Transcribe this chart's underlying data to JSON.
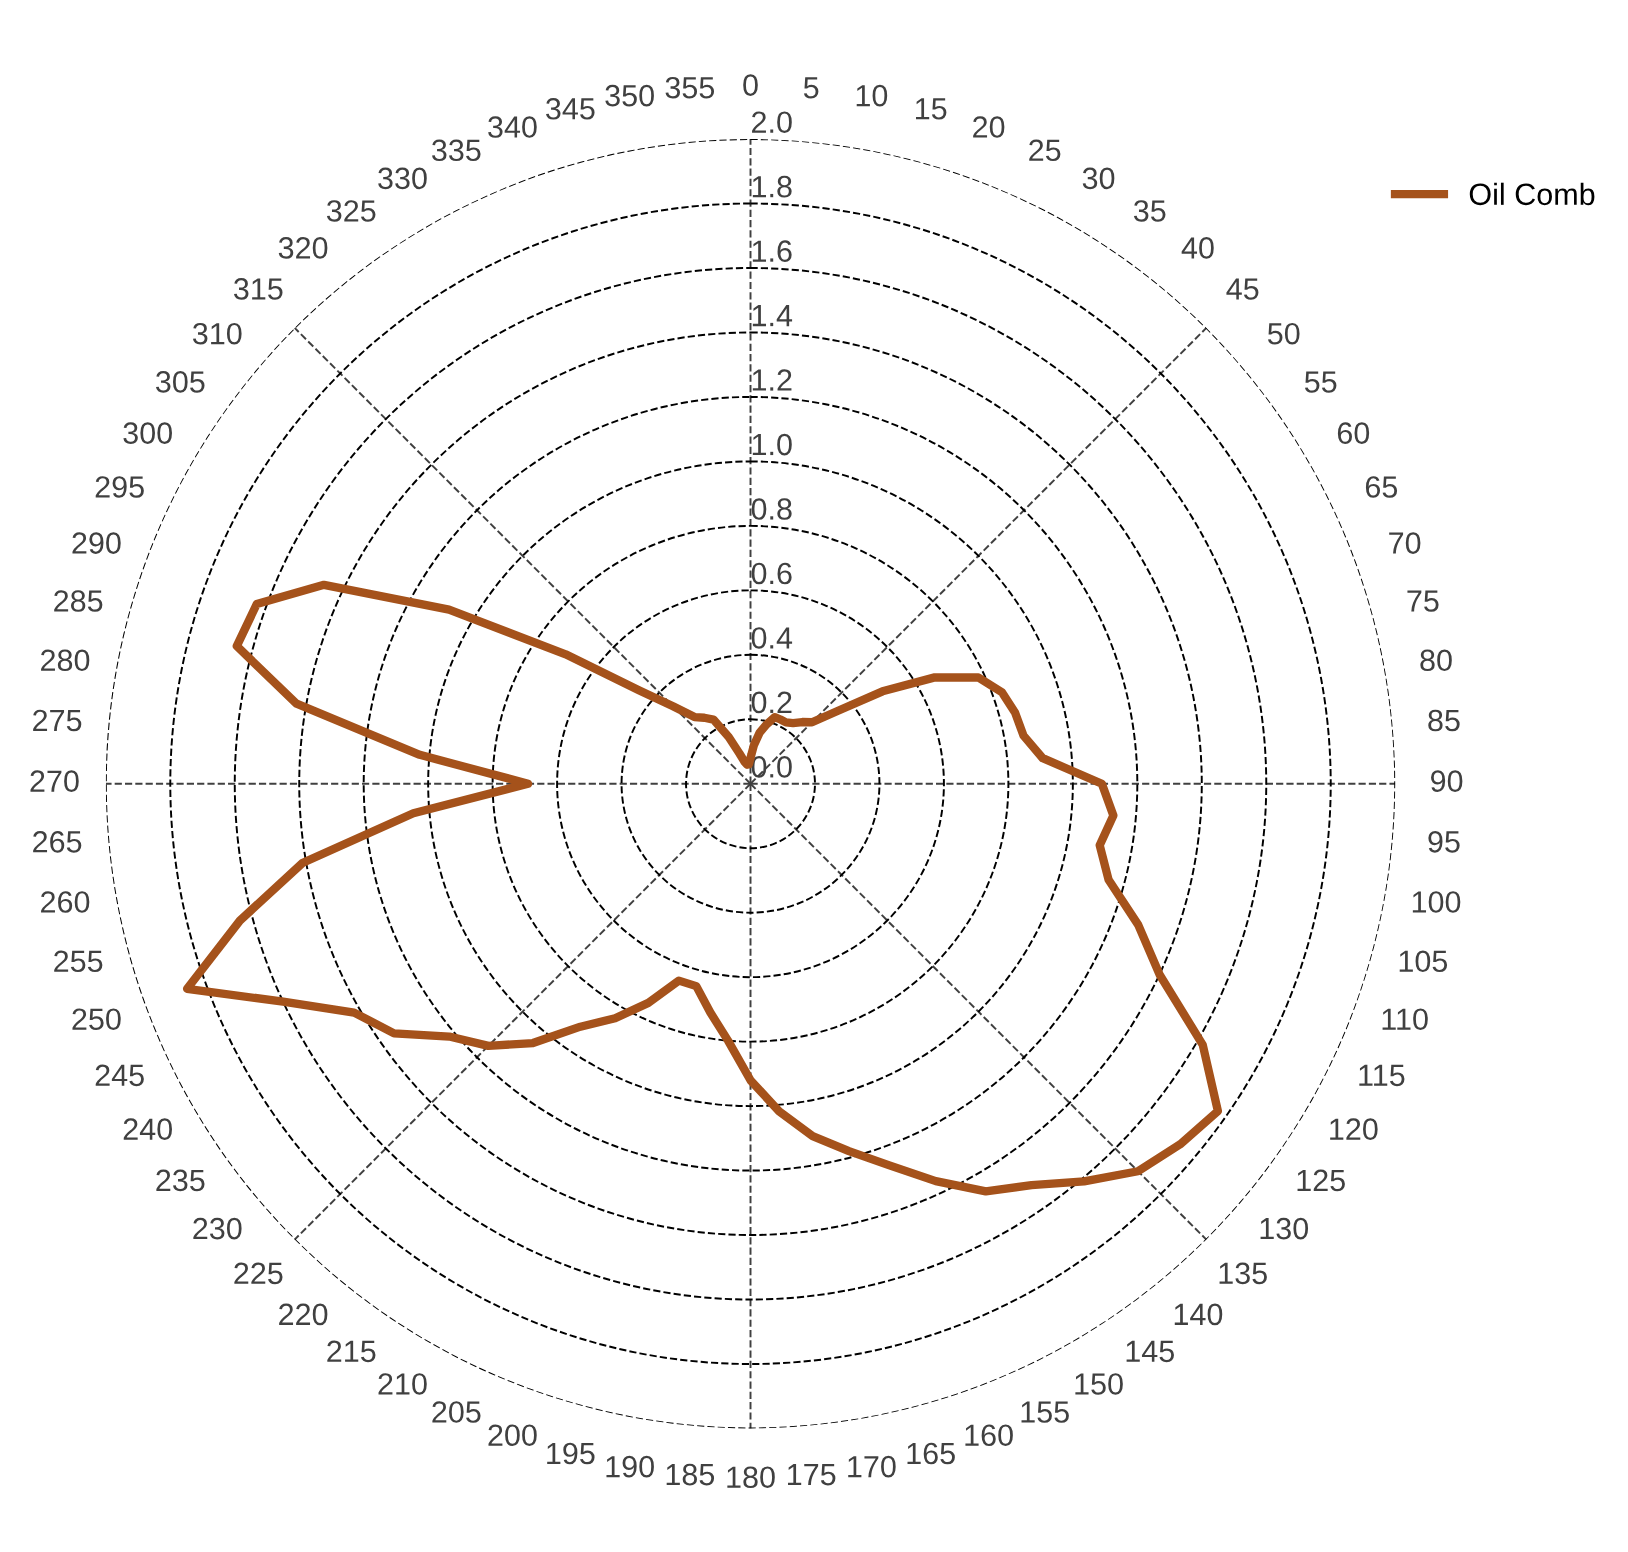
{
  "chart_data": {
    "type": "radar",
    "categories": [
      "0",
      "5",
      "10",
      "15",
      "20",
      "25",
      "30",
      "35",
      "40",
      "45",
      "50",
      "55",
      "60",
      "65",
      "70",
      "75",
      "80",
      "85",
      "90",
      "95",
      "100",
      "105",
      "110",
      "115",
      "120",
      "125",
      "130",
      "135",
      "140",
      "145",
      "150",
      "155",
      "160",
      "165",
      "170",
      "175",
      "180",
      "185",
      "190",
      "195",
      "200",
      "205",
      "210",
      "215",
      "220",
      "225",
      "230",
      "235",
      "240",
      "245",
      "250",
      "255",
      "260",
      "265",
      "270",
      "275",
      "280",
      "285",
      "290",
      "295",
      "300",
      "305",
      "310",
      "315",
      "320",
      "325",
      "330",
      "335",
      "340",
      "345",
      "350",
      "355"
    ],
    "series": [
      {
        "name": "Oil Comb",
        "color": "#a5521b",
        "values": [
          0.08,
          0.12,
          0.16,
          0.19,
          0.22,
          0.22,
          0.22,
          0.23,
          0.25,
          0.27,
          0.35,
          0.5,
          0.66,
          0.78,
          0.83,
          0.85,
          0.86,
          0.91,
          1.09,
          1.13,
          1.1,
          1.15,
          1.28,
          1.4,
          1.62,
          1.77,
          1.74,
          1.7,
          1.61,
          1.52,
          1.46,
          1.36,
          1.26,
          1.18,
          1.11,
          1.02,
          0.92,
          0.8,
          0.72,
          0.65,
          0.65,
          0.75,
          0.84,
          0.92,
          1.05,
          1.15,
          1.22,
          1.35,
          1.42,
          1.6,
          1.86,
          1.64,
          1.41,
          1.05,
          0.69,
          1.03,
          1.43,
          1.65,
          1.63,
          1.46,
          1.08,
          0.7,
          0.45,
          0.34,
          0.27,
          0.25,
          0.23,
          0.16,
          0.1,
          0.07,
          0.06,
          0.06
        ]
      }
    ],
    "ylim": [
      0,
      2.0
    ],
    "yticks": [
      {
        "value": 0,
        "label": "0.0"
      },
      {
        "value": 0.2,
        "label": "0.2"
      },
      {
        "value": 0.4,
        "label": "0.4"
      },
      {
        "value": 0.6,
        "label": "0.6"
      },
      {
        "value": 0.8,
        "label": "0.8"
      },
      {
        "value": 1.0,
        "label": "1.0"
      },
      {
        "value": 1.2,
        "label": "1.2"
      },
      {
        "value": 1.4,
        "label": "1.4"
      },
      {
        "value": 1.6,
        "label": "1.6"
      },
      {
        "value": 1.8,
        "label": "1.8"
      },
      {
        "value": 2.0,
        "label": "2.0"
      }
    ],
    "grid": true,
    "legend": "top right",
    "marker": "none",
    "line_style": "solid"
  }
}
